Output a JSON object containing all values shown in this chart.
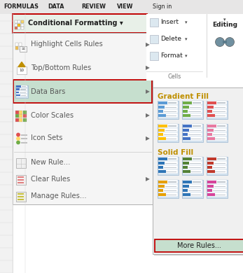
{
  "bg_color": "#d4d4d4",
  "menu_bg": "#f5f5f5",
  "submenu_bg": "#f0f0f0",
  "highlight_green": "#c6dfce",
  "red_border": "#c00000",
  "menu_border": "#b0b0b0",
  "text_dark": "#1f1f1f",
  "text_menu": "#595959",
  "tab_labels": [
    "FORMULAS",
    "DATA",
    "REVIEW",
    "VIEW",
    "Sign in"
  ],
  "tab_x": [
    5,
    68,
    116,
    167,
    218,
    271
  ],
  "gradient_fill_label": "Gradient Fill",
  "solid_fill_label": "Solid Fill",
  "more_rules_label": "More Rules...",
  "cond_format_label": "Conditional Formatting",
  "insert_label": "Insert",
  "delete_label": "Delete",
  "format_label": "Format",
  "cells_label": "Cells",
  "editing_label": "Editing",
  "menu_items": [
    {
      "name": "Highlight Cells Rules",
      "has_arrow": true,
      "highlighted": false
    },
    {
      "name": "Top/Bottom Rules",
      "has_arrow": true,
      "highlighted": false
    },
    {
      "name": "Data Bars",
      "has_arrow": true,
      "highlighted": true
    },
    {
      "name": "Color Scales",
      "has_arrow": true,
      "highlighted": false
    },
    {
      "name": "Icon Sets",
      "has_arrow": true,
      "highlighted": false
    },
    {
      "name": "---",
      "has_arrow": false,
      "highlighted": false
    },
    {
      "name": "New Rule...",
      "has_arrow": false,
      "highlighted": false
    },
    {
      "name": "Clear Rules",
      "has_arrow": true,
      "highlighted": false
    },
    {
      "name": "Manage Rules...",
      "has_arrow": false,
      "highlighted": false
    }
  ],
  "gradient_row1": [
    "#5b9bd5",
    "#70ad47",
    "#e05050"
  ],
  "gradient_row2": [
    "#ffc000",
    "#4472c4",
    "#e879a0"
  ],
  "solid_row1": [
    "#2e75b6",
    "#538135",
    "#c0392b"
  ],
  "solid_row2": [
    "#e6a000",
    "#2e75b6",
    "#d6449a"
  ]
}
